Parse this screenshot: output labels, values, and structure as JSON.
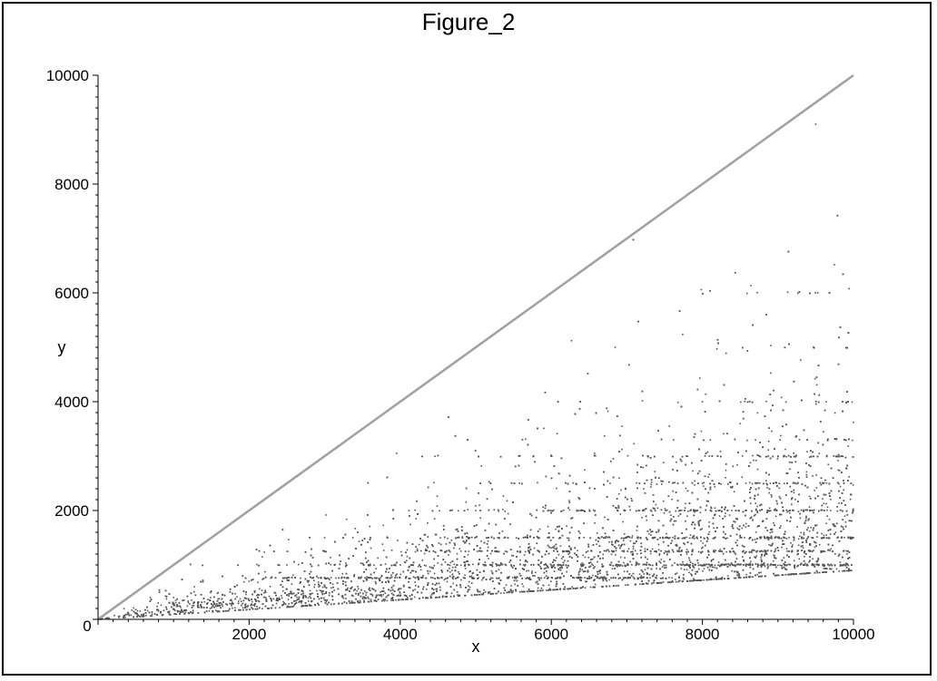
{
  "chart_data": {
    "type": "scatter",
    "title": "Figure_2",
    "xlabel": "x",
    "ylabel": "y",
    "xlim": [
      0,
      10000
    ],
    "ylim": [
      0,
      10000
    ],
    "xticks": [
      "0",
      "2000",
      "4000",
      "6000",
      "8000",
      "10000"
    ],
    "yticks": [
      "0",
      "2000",
      "4000",
      "6000",
      "8000",
      "10000"
    ],
    "grid": false,
    "reference_line": {
      "from": [
        0,
        0
      ],
      "to": [
        10000,
        10000
      ],
      "color": "#a0a0a0"
    },
    "point_color": "#555555",
    "point_count_estimate": 9000,
    "point_distribution": "y between roughly x/10 and x (below line y = x), densest near y = x/6, with horizontal banding at about y ≈ 1000, 1500, 2000, 2500, 3000, 3300, 4000, 5000, 6000",
    "band_levels": [
      760,
      1000,
      1250,
      1500,
      2000,
      2500,
      3000,
      3300,
      4000,
      5000,
      6000
    ],
    "series": [
      {
        "values": [
          [
            500,
            180
          ],
          [
            1000,
            400
          ],
          [
            1500,
            520
          ],
          [
            2000,
            700
          ],
          [
            2500,
            1000
          ],
          [
            3000,
            1500
          ],
          [
            4000,
            1000
          ],
          [
            5000,
            2000
          ],
          [
            6000,
            3000
          ],
          [
            7000,
            1500
          ],
          [
            8000,
            4000
          ],
          [
            9000,
            3000
          ],
          [
            9500,
            9100
          ],
          [
            10000,
            1500
          ]
        ]
      }
    ]
  }
}
